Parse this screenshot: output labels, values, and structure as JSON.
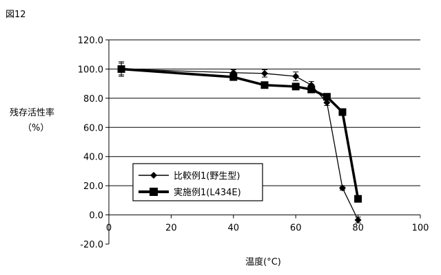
{
  "figure_label": "図12",
  "chart_data": {
    "type": "line",
    "title": "",
    "xlabel": "温度(°C)",
    "ylabel_line1": "残存活性率",
    "ylabel_line2": "（%）",
    "xlim": [
      0,
      100
    ],
    "ylim": [
      -20,
      120
    ],
    "x_ticks": [
      0,
      20,
      40,
      60,
      80,
      100
    ],
    "y_ticks": [
      -20,
      0,
      20,
      40,
      60,
      80,
      100,
      120
    ],
    "x_tick_labels": [
      "0",
      "20",
      "40",
      "60",
      "80",
      "100"
    ],
    "y_tick_labels": [
      "-20.0",
      "0.0",
      "20.0",
      "40.0",
      "60.0",
      "80.0",
      "100.0",
      "120.0"
    ],
    "grid": "horizontal",
    "legend_position": "lower-left",
    "series": [
      {
        "name": "比較例1(野生型)",
        "marker": "diamond",
        "line_weight": "thin",
        "color": "#000000",
        "x": [
          4,
          40,
          50,
          60,
          65,
          70,
          75,
          80
        ],
        "values": [
          100,
          97.5,
          97,
          95,
          89,
          77,
          18.5,
          -3.5
        ],
        "errors": [
          5,
          2,
          2.5,
          3,
          2.5,
          2,
          1.5,
          2
        ]
      },
      {
        "name": "実施例1(L434E)",
        "marker": "square",
        "line_weight": "thick",
        "color": "#000000",
        "x": [
          4,
          40,
          50,
          60,
          65,
          70,
          75,
          80
        ],
        "values": [
          100,
          94.5,
          89,
          88,
          86,
          81,
          70.5,
          11
        ],
        "errors": [
          4,
          1.5,
          1.5,
          1.5,
          2,
          2,
          1,
          1
        ]
      }
    ]
  }
}
